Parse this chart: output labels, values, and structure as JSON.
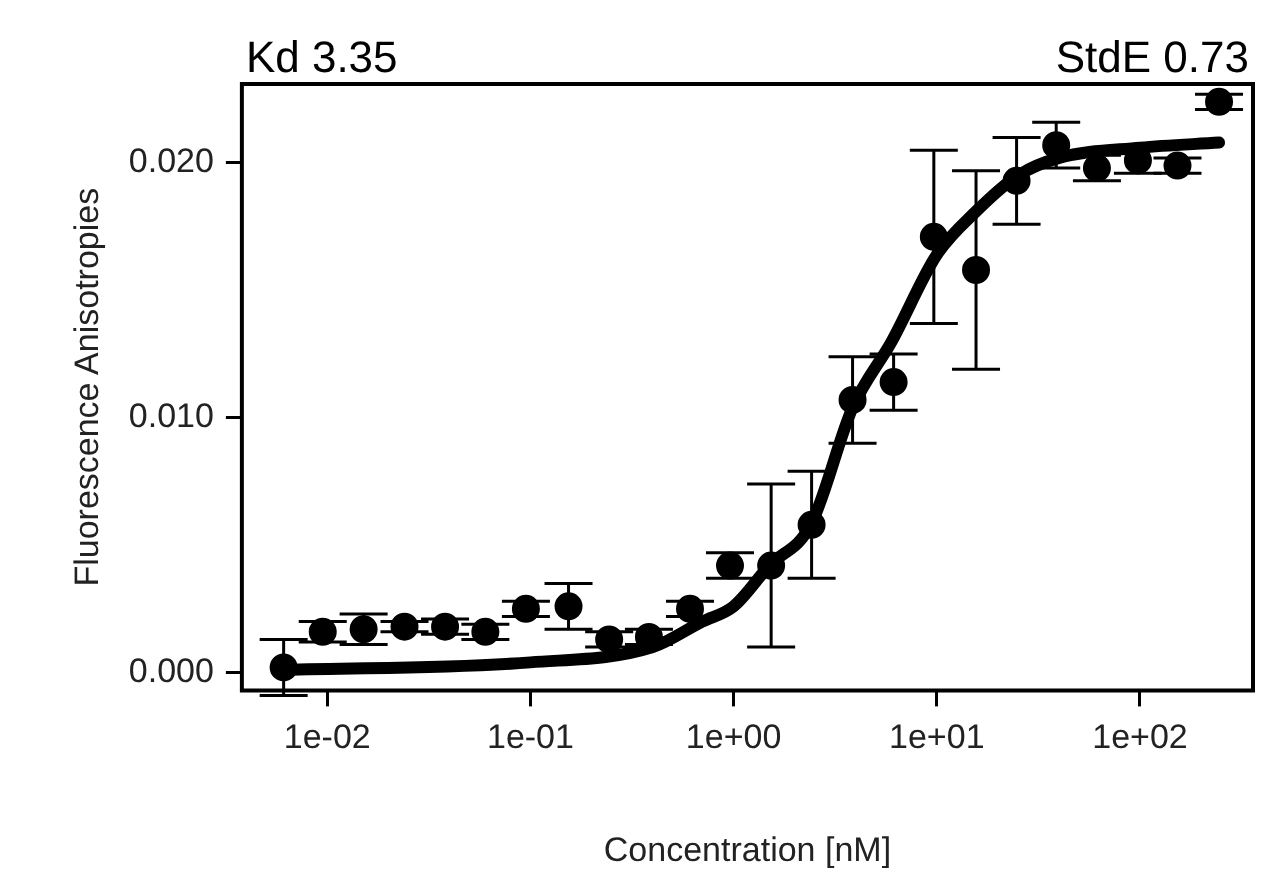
{
  "chart_data": {
    "type": "scatter",
    "xlabel": "Concentration [nM]",
    "ylabel": "Fluorescence Anisotropies",
    "annotations": [
      "Kd 3.35",
      "StdE 0.73"
    ],
    "log": "x",
    "grid": false,
    "legend": false,
    "xlim": [
      0.0038,
      360
    ],
    "xticks": [
      {
        "value": 0.01,
        "label": "1e-02"
      },
      {
        "value": 0.1,
        "label": "1e-01"
      },
      {
        "value": 1,
        "label": "1e+00"
      },
      {
        "value": 10,
        "label": "1e+01"
      },
      {
        "value": 100,
        "label": "1e+02"
      }
    ],
    "ylim": [
      -0.0007,
      0.0231
    ],
    "yticks": [
      {
        "value": 0,
        "label": "0.000"
      },
      {
        "value": 0.01,
        "label": "0.010"
      },
      {
        "value": 0.02,
        "label": "0.020"
      }
    ],
    "series": [
      {
        "type": "scatter",
        "color": "#000000",
        "marker": "circle",
        "x": [
          0.0061,
          0.0095,
          0.0151,
          0.024,
          0.038,
          0.06,
          0.095,
          0.154,
          0.244,
          0.383,
          0.61,
          0.96,
          1.53,
          2.42,
          3.85,
          6.13,
          9.67,
          15.6,
          24.7,
          38.7,
          61.4,
          97.7,
          153,
          245
        ],
        "values": [
          0.0002,
          0.0016,
          0.0017,
          0.0018,
          0.0018,
          0.0016,
          0.0025,
          0.0026,
          0.0013,
          0.0014,
          0.0025,
          0.0042,
          0.0042,
          0.0058,
          0.0107,
          0.0114,
          0.0171,
          0.0158,
          0.0193,
          0.0207,
          0.0198,
          0.0201,
          0.0199,
          0.0224
        ],
        "errors": [
          0.0011,
          0.0004,
          0.0006,
          0.0002,
          0.0003,
          0.0003,
          0.0003,
          0.0009,
          0.0003,
          0.0003,
          0.0003,
          0.0005,
          0.0032,
          0.0021,
          0.0017,
          0.0011,
          0.0034,
          0.0039,
          0.0017,
          0.0009,
          0.0005,
          0.0005,
          0.0003,
          0.0003
        ]
      },
      {
        "type": "line",
        "color": "#000000",
        "line_style": "solid",
        "x": [
          0.0061,
          0.1,
          0.4,
          0.7,
          1,
          1.5,
          2.4,
          3.85,
          6,
          10,
          15.6,
          25,
          40,
          100,
          245
        ],
        "values": [
          0.0001,
          0.0004,
          0.001,
          0.002,
          0.0026,
          0.0042,
          0.0058,
          0.0104,
          0.013,
          0.0164,
          0.0181,
          0.0195,
          0.0202,
          0.0206,
          0.0208
        ]
      }
    ]
  }
}
